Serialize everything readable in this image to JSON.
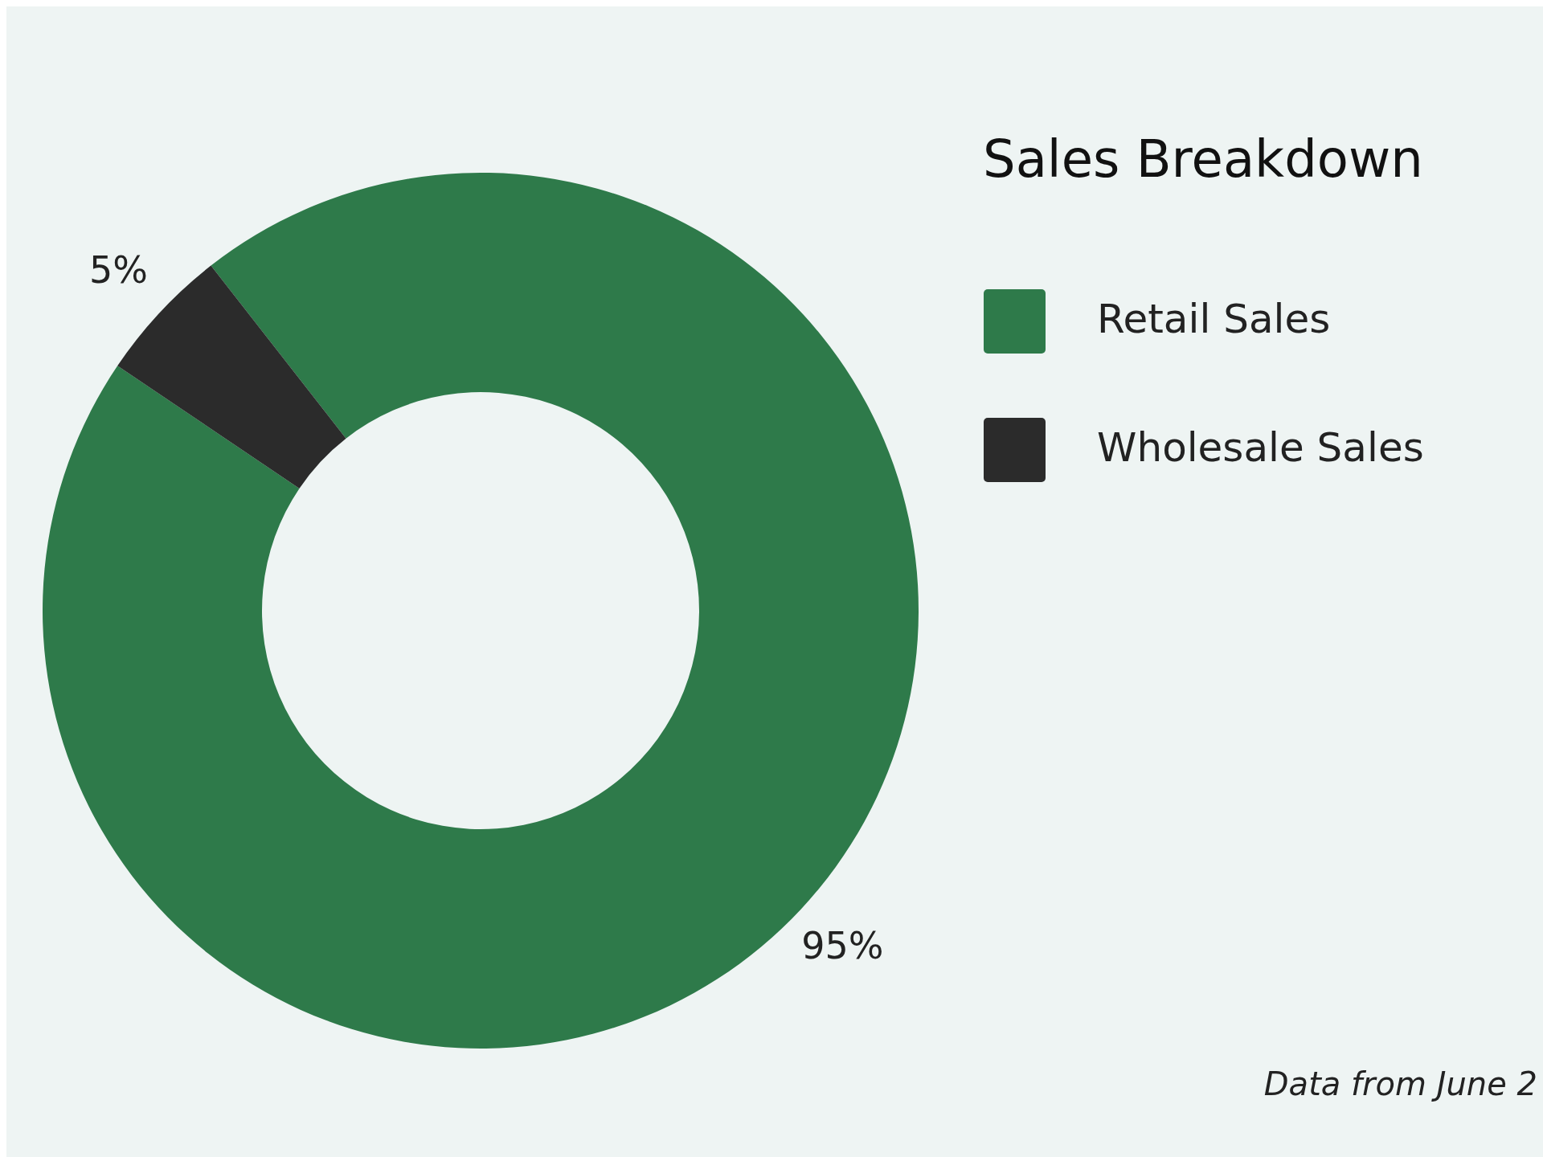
{
  "chart_data": {
    "type": "donut",
    "legend_title": "Sales Breakdown",
    "categories": [
      "Retail Sales",
      "Wholesale Sales"
    ],
    "values": [
      95,
      5
    ],
    "colors": [
      "#2e7a4a",
      "#2b2b2b"
    ],
    "value_labels": [
      "95%",
      "5%"
    ],
    "legend": "right",
    "annotations": [
      "Data from June 2"
    ]
  }
}
